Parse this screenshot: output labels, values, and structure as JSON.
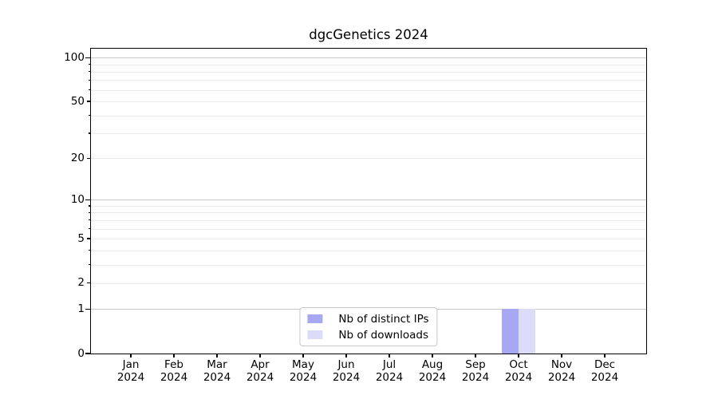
{
  "page": {
    "background": "#ffffff"
  },
  "chart_data": {
    "type": "bar",
    "title": "dgcGenetics 2024",
    "xlabel": "",
    "ylabel": "",
    "x": {
      "months": [
        "Jan",
        "Feb",
        "Mar",
        "Apr",
        "May",
        "Jun",
        "Jul",
        "Aug",
        "Sep",
        "Oct",
        "Nov",
        "Dec"
      ],
      "year": "2024"
    },
    "categories": [
      "Jan 2024",
      "Feb 2024",
      "Mar 2024",
      "Apr 2024",
      "May 2024",
      "Jun 2024",
      "Jul 2024",
      "Aug 2024",
      "Sep 2024",
      "Oct 2024",
      "Nov 2024",
      "Dec 2024"
    ],
    "series": [
      {
        "name": "Nb of distinct IPs",
        "color": "#a8a8f2",
        "values": [
          0,
          0,
          0,
          0,
          0,
          0,
          0,
          0,
          0,
          1,
          0,
          0
        ]
      },
      {
        "name": "Nb of downloads",
        "color": "#dcdcf8",
        "values": [
          0,
          0,
          0,
          0,
          0,
          0,
          0,
          0,
          0,
          1,
          0,
          0
        ]
      }
    ],
    "y_scale": "log10(value+1)",
    "ylim": [
      0,
      115
    ],
    "y_ticks_labeled": [
      0,
      1,
      2,
      5,
      10,
      20,
      50,
      100
    ],
    "y_gridlines_major": [
      1,
      10,
      100
    ],
    "y_gridlines_minor": [
      2,
      3,
      4,
      5,
      6,
      7,
      8,
      9,
      20,
      30,
      40,
      50,
      60,
      70,
      80,
      90
    ],
    "grid": "horizontal",
    "legend_position": "lower center",
    "colors": {
      "major_grid": "#c9c9c9",
      "minor_grid": "#ececec",
      "axis": "#000000",
      "background": "#ffffff"
    }
  }
}
